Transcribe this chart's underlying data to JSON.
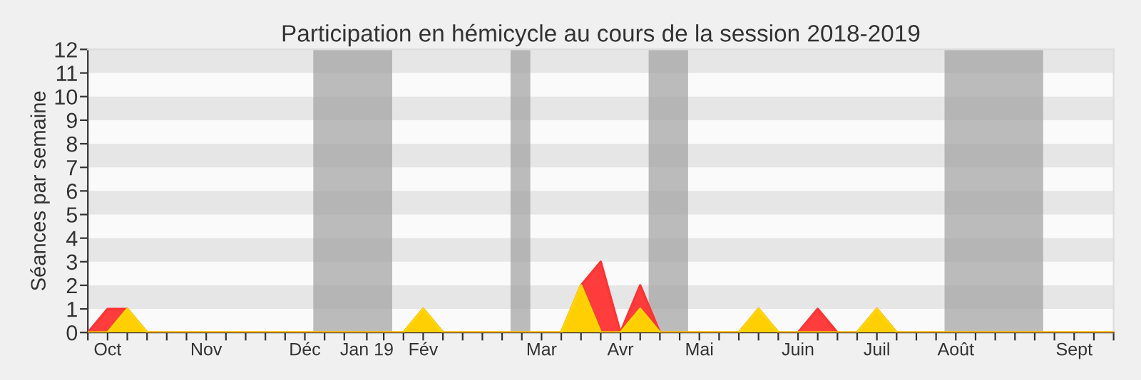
{
  "chart_data": {
    "type": "area",
    "title": "Participation en hémicycle au cours de la session 2018-2019",
    "ylabel": "Séances par semaine",
    "x": [
      "2018-09-24",
      "2018-10-01",
      "2018-10-08",
      "2018-10-15",
      "2018-10-22",
      "2018-10-29",
      "2018-11-05",
      "2018-11-12",
      "2018-11-19",
      "2018-11-26",
      "2018-12-03",
      "2018-12-10",
      "2018-12-17",
      "2018-12-24",
      "2018-12-31",
      "2019-01-07",
      "2019-01-14",
      "2019-01-21",
      "2019-01-28",
      "2019-02-04",
      "2019-02-11",
      "2019-02-18",
      "2019-02-25",
      "2019-03-04",
      "2019-03-11",
      "2019-03-18",
      "2019-03-25",
      "2019-04-01",
      "2019-04-08",
      "2019-04-15",
      "2019-04-22",
      "2019-04-29",
      "2019-05-06",
      "2019-05-13",
      "2019-05-20",
      "2019-05-27",
      "2019-06-03",
      "2019-06-10",
      "2019-06-17",
      "2019-06-24",
      "2019-07-01",
      "2019-07-08",
      "2019-07-15",
      "2019-07-22",
      "2019-07-29",
      "2019-08-05",
      "2019-08-12",
      "2019-08-19",
      "2019-08-26",
      "2019-09-02",
      "2019-09-09",
      "2019-09-16",
      "2019-09-23"
    ],
    "series": [
      {
        "color": "#ff3333",
        "values": [
          0,
          1,
          1,
          0,
          0,
          0,
          0,
          0,
          0,
          0,
          0,
          0,
          0,
          0,
          0,
          0,
          0,
          1,
          0,
          0,
          0,
          0,
          0,
          0,
          0,
          2,
          3,
          0,
          2,
          0,
          0,
          0,
          0,
          0,
          1,
          0,
          0,
          1,
          0,
          0,
          1,
          0,
          0,
          0,
          0,
          0,
          0,
          0,
          0,
          0,
          0,
          0,
          0
        ]
      },
      {
        "color": "#ffd700",
        "values": [
          0,
          0,
          1,
          0,
          0,
          0,
          0,
          0,
          0,
          0,
          0,
          0,
          0,
          0,
          0,
          0,
          0,
          1,
          0,
          0,
          0,
          0,
          0,
          0,
          0,
          2,
          0,
          0,
          1,
          0,
          0,
          0,
          0,
          0,
          1,
          0,
          0,
          0,
          0,
          0,
          1,
          0,
          0,
          0,
          0,
          0,
          0,
          0,
          0,
          0,
          0,
          0,
          0
        ]
      }
    ],
    "xlim": [
      "2018-09-24",
      "2019-09-23"
    ],
    "xticks": [
      {
        "value": "2018-09-24",
        "label": null
      },
      {
        "value": "2018-10-01",
        "label": "Oct"
      },
      {
        "value": "2018-10-08",
        "label": null
      },
      {
        "value": "2018-10-15",
        "label": null
      },
      {
        "value": "2018-10-22",
        "label": null
      },
      {
        "value": "2018-10-29",
        "label": null
      },
      {
        "value": "2018-11-05",
        "label": "Nov"
      },
      {
        "value": "2018-11-12",
        "label": null
      },
      {
        "value": "2018-11-19",
        "label": null
      },
      {
        "value": "2018-11-26",
        "label": null
      },
      {
        "value": "2018-12-03",
        "label": null
      },
      {
        "value": "2018-12-10",
        "label": "Déc"
      },
      {
        "value": "2018-12-17",
        "label": null
      },
      {
        "value": "2018-12-24",
        "label": null
      },
      {
        "value": "2019-01-01",
        "label": "Jan 19"
      },
      {
        "value": "2019-01-07",
        "label": null
      },
      {
        "value": "2019-01-14",
        "label": null
      },
      {
        "value": "2019-01-21",
        "label": "Fév"
      },
      {
        "value": "2019-01-28",
        "label": null
      },
      {
        "value": "2019-02-04",
        "label": null
      },
      {
        "value": "2019-02-11",
        "label": null
      },
      {
        "value": "2019-02-18",
        "label": null
      },
      {
        "value": "2019-02-25",
        "label": null
      },
      {
        "value": "2019-03-04",
        "label": "Mar"
      },
      {
        "value": "2019-03-11",
        "label": null
      },
      {
        "value": "2019-03-18",
        "label": null
      },
      {
        "value": "2019-03-25",
        "label": null
      },
      {
        "value": "2019-04-01",
        "label": "Avr"
      },
      {
        "value": "2019-04-08",
        "label": null
      },
      {
        "value": "2019-04-15",
        "label": null
      },
      {
        "value": "2019-04-22",
        "label": null
      },
      {
        "value": "2019-04-29",
        "label": "Mai"
      },
      {
        "value": "2019-05-06",
        "label": null
      },
      {
        "value": "2019-05-13",
        "label": null
      },
      {
        "value": "2019-05-20",
        "label": null
      },
      {
        "value": "2019-05-27",
        "label": null
      },
      {
        "value": "2019-06-03",
        "label": "Juin"
      },
      {
        "value": "2019-06-10",
        "label": null
      },
      {
        "value": "2019-06-17",
        "label": null
      },
      {
        "value": "2019-06-24",
        "label": null
      },
      {
        "value": "2019-07-01",
        "label": "Juil"
      },
      {
        "value": "2019-07-08",
        "label": null
      },
      {
        "value": "2019-07-15",
        "label": null
      },
      {
        "value": "2019-07-22",
        "label": null
      },
      {
        "value": "2019-07-29",
        "label": "Août"
      },
      {
        "value": "2019-08-05",
        "label": null
      },
      {
        "value": "2019-08-12",
        "label": null
      },
      {
        "value": "2019-08-19",
        "label": null
      },
      {
        "value": "2019-08-26",
        "label": null
      },
      {
        "value": "2019-09-02",
        "label": null
      },
      {
        "value": "2019-09-09",
        "label": "Sept"
      },
      {
        "value": "2019-09-16",
        "label": null
      },
      {
        "value": "2019-09-23",
        "label": null
      }
    ],
    "ylim": [
      0,
      12
    ],
    "yticks": [
      0,
      1,
      2,
      3,
      4,
      5,
      6,
      7,
      8,
      9,
      10,
      11,
      12
    ],
    "bands": [
      {
        "axis": "y",
        "from": 1,
        "to": 2,
        "color": "#e6e6e6"
      },
      {
        "axis": "y",
        "from": 3,
        "to": 4,
        "color": "#e6e6e6"
      },
      {
        "axis": "y",
        "from": 5,
        "to": 6,
        "color": "#e6e6e6"
      },
      {
        "axis": "y",
        "from": 7,
        "to": 8,
        "color": "#e6e6e6"
      },
      {
        "axis": "y",
        "from": 9,
        "to": 10,
        "color": "#e6e6e6"
      },
      {
        "axis": "y",
        "from": 11,
        "to": 12,
        "color": "#e6e6e6"
      },
      {
        "axis": "x",
        "from": "2018-12-13",
        "to": "2019-01-10",
        "color": "#a0a0a0"
      },
      {
        "axis": "x",
        "from": "2019-02-21",
        "to": "2019-02-28",
        "color": "#a0a0a0"
      },
      {
        "axis": "x",
        "from": "2019-04-11",
        "to": "2019-04-25",
        "color": "#a0a0a0"
      },
      {
        "axis": "x",
        "from": "2019-07-25",
        "to": "2019-08-29",
        "color": "#a0a0a0"
      }
    ],
    "grid": false,
    "legend": false
  }
}
